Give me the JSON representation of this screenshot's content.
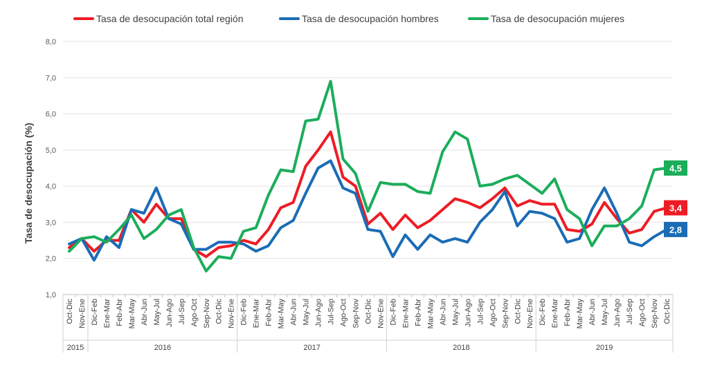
{
  "chart_data": {
    "type": "line",
    "title": "",
    "xlabel": "",
    "ylabel": "Tasa de desocupación (%)",
    "ylim": [
      1.0,
      8.0
    ],
    "y_ticks": [
      "1,0",
      "2,0",
      "3,0",
      "4,0",
      "5,0",
      "6,0",
      "7,0",
      "8,0"
    ],
    "legend_position": "top",
    "categories": [
      "Oct-Dic",
      "Nov-Ene",
      "Dic-Feb",
      "Ene-Mar",
      "Feb-Abr",
      "Mar-May",
      "Abr-Jun",
      "May-Jul",
      "Jun-Ago",
      "Jul-Sep",
      "Ago-Oct",
      "Sep-Nov",
      "Oct-Dic",
      "Nov-Ene",
      "Dic-Feb",
      "Ene-Mar",
      "Feb-Abr",
      "Mar-May",
      "Abr-Jun",
      "May-Jul",
      "Jun-Ago",
      "Jul-Sep",
      "Ago-Oct",
      "Sep-Nov",
      "Oct-Dic",
      "Nov-Ene",
      "Dic-Feb",
      "Ene-Mar",
      "Feb-Abr",
      "Mar-May",
      "Abr-Jun",
      "May-Jul",
      "Jun-Ago",
      "Jul-Sep",
      "Ago-Oct",
      "Sep-Nov",
      "Oct-Dic",
      "Nov-Ene",
      "Dic-Feb",
      "Ene-Mar",
      "Feb-Abr",
      "Mar-May",
      "Abr-Jun",
      "May-Jul",
      "Jun-Ago",
      "Jul-Sep",
      "Ago-Oct",
      "Sep-Nov",
      "Oct-Dic"
    ],
    "year_groups": [
      {
        "label": "2015",
        "start": 0,
        "end": 1
      },
      {
        "label": "2016",
        "start": 2,
        "end": 13
      },
      {
        "label": "2017",
        "start": 14,
        "end": 25
      },
      {
        "label": "2018",
        "start": 26,
        "end": 37
      },
      {
        "label": "2019",
        "start": 38,
        "end": 48
      }
    ],
    "series": [
      {
        "name": "Tasa de desocupación total región",
        "color": "#ee1c25",
        "end_label": "3,4",
        "values": [
          2.3,
          2.55,
          2.2,
          2.5,
          2.5,
          3.35,
          3.0,
          3.5,
          3.1,
          3.1,
          2.25,
          2.05,
          2.3,
          2.35,
          2.5,
          2.4,
          2.8,
          3.4,
          3.55,
          4.55,
          5.0,
          5.5,
          4.25,
          4.0,
          2.95,
          3.25,
          2.8,
          3.2,
          2.85,
          3.05,
          3.35,
          3.65,
          3.55,
          3.4,
          3.65,
          3.95,
          3.45,
          3.6,
          3.5,
          3.5,
          2.8,
          2.75,
          2.95,
          3.55,
          3.1,
          2.7,
          2.8,
          3.3,
          3.4
        ]
      },
      {
        "name": "Tasa de desocupación hombres",
        "color": "#1a6cb6",
        "end_label": "2,8",
        "values": [
          2.4,
          2.55,
          1.95,
          2.6,
          2.3,
          3.35,
          3.25,
          3.95,
          3.1,
          2.95,
          2.25,
          2.25,
          2.45,
          2.45,
          2.4,
          2.2,
          2.35,
          2.85,
          3.05,
          3.8,
          4.5,
          4.7,
          3.95,
          3.8,
          2.8,
          2.75,
          2.05,
          2.65,
          2.25,
          2.65,
          2.45,
          2.55,
          2.45,
          3.0,
          3.35,
          3.85,
          2.9,
          3.3,
          3.25,
          3.1,
          2.45,
          2.55,
          3.35,
          3.95,
          3.25,
          2.45,
          2.35,
          2.6,
          2.8
        ]
      },
      {
        "name": "Tasa de desocupación mujeres",
        "color": "#1cad5b",
        "end_label": "4,5",
        "values": [
          2.2,
          2.55,
          2.6,
          2.45,
          2.8,
          3.2,
          2.55,
          2.8,
          3.2,
          3.35,
          2.3,
          1.65,
          2.05,
          2.0,
          2.75,
          2.85,
          3.75,
          4.45,
          4.4,
          5.8,
          5.85,
          6.9,
          4.75,
          4.35,
          3.3,
          4.1,
          4.05,
          4.05,
          3.85,
          3.8,
          4.95,
          5.5,
          5.3,
          4.0,
          4.05,
          4.2,
          4.3,
          4.05,
          3.8,
          4.2,
          3.35,
          3.1,
          2.35,
          2.9,
          2.9,
          3.1,
          3.45,
          4.45,
          4.5
        ]
      }
    ]
  }
}
